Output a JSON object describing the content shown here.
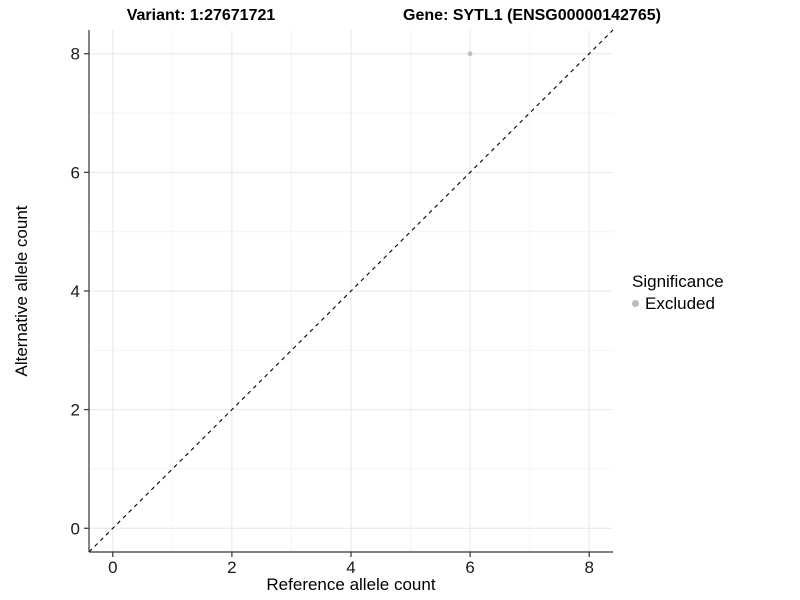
{
  "titles": {
    "variant": "Variant: 1:27671721",
    "gene": "Gene: SYTL1 (ENSG00000142765)"
  },
  "chart_data": {
    "type": "scatter",
    "title_left": "Variant: 1:27671721",
    "title_right": "Gene: SYTL1 (ENSG00000142765)",
    "xlabel": "Reference allele count",
    "ylabel": "Alternative allele count",
    "xlim": [
      -0.4,
      8.4
    ],
    "ylim": [
      -0.4,
      8.4
    ],
    "xticks": [
      0,
      2,
      4,
      6,
      8
    ],
    "yticks": [
      0,
      2,
      4,
      6,
      8
    ],
    "minor_xticks": [
      1,
      3,
      5,
      7
    ],
    "minor_yticks": [
      1,
      3,
      5,
      7
    ],
    "grid": true,
    "identity_line": {
      "style": "dashed",
      "from": [
        -0.4,
        -0.4
      ],
      "to": [
        8.4,
        8.4
      ]
    },
    "points": [
      {
        "x": 6,
        "y": 8,
        "significance": "Excluded"
      }
    ],
    "legend": {
      "title": "Significance",
      "position": "right",
      "items": [
        {
          "label": "Excluded",
          "color": "#bdbdbd"
        }
      ]
    }
  },
  "colors": {
    "background": "#ffffff",
    "grid_major": "#e7e7e7",
    "grid_minor": "#f4f4f4",
    "axis_line": "#333333",
    "tick_mark": "#333333",
    "tick_text": "#1a1a1a",
    "identity_line": "#000000",
    "point": "#bdbdbd",
    "title_text": "#000000"
  }
}
